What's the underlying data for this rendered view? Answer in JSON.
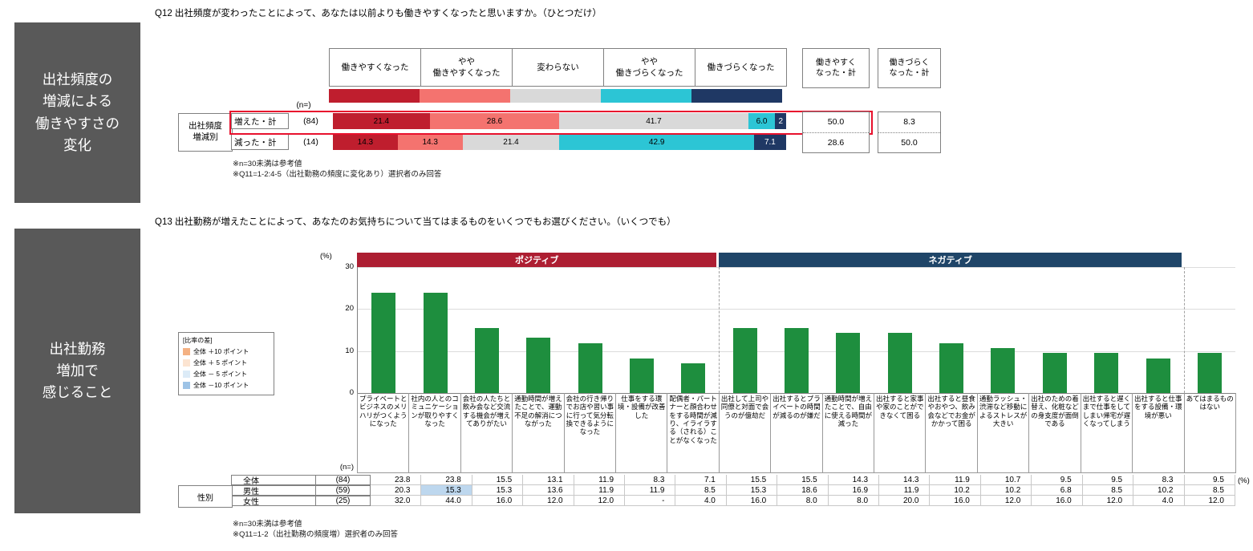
{
  "q12": {
    "side_label": "出社頻度の\n増減による\n働きやすさの\n変化",
    "title": "Q12 出社頻度が変わったことによって、あなたは以前よりも働きやすくなったと思いますか。（ひとつだけ）",
    "n_header": "(n=)",
    "group_label": "出社頻度\n増減別",
    "columns": [
      "働きやすくなった",
      "やや\n働きやすくなった",
      "変わらない",
      "やや\n働きづらくなった",
      "働きづらくなった"
    ],
    "rows": [
      {
        "label": "増えた・計",
        "n": "(84)",
        "display_labels": [
          "21.4",
          "28.6",
          "41.7",
          "6.0",
          "2"
        ],
        "easier_total": "50.0",
        "harder_total": "8.3",
        "highlighted": true
      },
      {
        "label": "減った・計",
        "n": "(14)",
        "display_labels": [
          "14.3",
          "14.3",
          "21.4",
          "42.9",
          "7.1"
        ],
        "easier_total": "28.6",
        "harder_total": "50.0",
        "highlighted": false
      }
    ],
    "easier_total_header": "働きやすく\nなった・計",
    "harder_total_header": "働きづらく\nなった・計",
    "highlight_color": "#e8112d",
    "notes": [
      "※n=30未満は参考値",
      "※Q11=1-2:4-5（出社勤務の頻度に変化あり）選択者のみ回答"
    ]
  },
  "q13": {
    "side_label": "出社勤務\n増加で\n感じること",
    "title": "Q13 出社勤務が増えたことによって、あなたのお気持ちについて当てはまるものをいくつでもお選びください。（いくつでも）",
    "legend": {
      "title": "[比率の差]",
      "items": [
        {
          "color": "#f4b183",
          "label": "全体 ＋10 ポイント"
        },
        {
          "color": "#fce4d1",
          "label": "全体 ＋ 5 ポイント"
        },
        {
          "color": "#dcebf7",
          "label": "全体 － 5 ポイント"
        },
        {
          "color": "#9dc3e6",
          "label": "全体 －10 ポイント"
        }
      ]
    },
    "bands": [
      {
        "label": "ポジティブ",
        "color": "#ad1e32",
        "span": 7
      },
      {
        "label": "ネガティブ",
        "color": "#1f4568",
        "span": 9
      }
    ],
    "axis": {
      "unit": "(%)",
      "max": 30,
      "ticks": [
        30,
        20,
        10,
        0
      ],
      "grid_values": [
        10,
        20,
        30
      ]
    },
    "bar_color": "#1e8e3e",
    "n_header": "(n=)",
    "pct_label": "(%)",
    "table": {
      "group_label": "性別",
      "rows": [
        {
          "label": "全体",
          "n": "(84)"
        },
        {
          "label": "男性",
          "n": "(59)",
          "highlight_cells": {
            "1": "#bdd7ee"
          }
        },
        {
          "label": "女性",
          "n": "(25)"
        }
      ]
    },
    "notes": [
      "※n=30未満は参考値",
      "※Q11=1-2（出社勤務の頻度増）選択者のみ回答"
    ]
  },
  "chart_data": [
    {
      "type": "bar",
      "subtype": "horizontal-stacked",
      "title": "Q12 出社頻度が変わったことによって、あなたは以前よりも働きやすくなったと思いますか。（ひとつだけ）",
      "categories": [
        "増えた・計（n=84）",
        "減った・計（n=14）"
      ],
      "series": [
        {
          "name": "働きやすくなった",
          "color": "#bf1e2e",
          "values": [
            21.4,
            14.3
          ]
        },
        {
          "name": "やや働きやすくなった",
          "color": "#f4736f",
          "values": [
            28.6,
            14.3
          ]
        },
        {
          "name": "変わらない",
          "color": "#d9d9d9",
          "values": [
            41.7,
            21.4
          ]
        },
        {
          "name": "やや働きづらくなった",
          "color": "#2cc5d5",
          "values": [
            6.0,
            42.9
          ]
        },
        {
          "name": "働きづらくなった",
          "color": "#1f3864",
          "values": [
            2.4,
            7.1
          ]
        }
      ],
      "totals": {
        "働きやすくなった・計": [
          50.0,
          28.6
        ],
        "働きづらくなった・計": [
          8.3,
          50.0
        ]
      },
      "xlim": [
        0,
        100
      ],
      "unit": "%"
    },
    {
      "type": "bar",
      "title": "Q13 出社勤務が増えたことによって、あなたのお気持ちについて当てはまるものをいくつでもお選びください。（いくつでも）",
      "categories": [
        "プライベートとビジネスのメリハリがつくようになった",
        "社内の人とのコミュニケーションが取りやすくなった",
        "会社の人たちと飲み会など交流する機会が増えてありがたい",
        "通勤時間が増えたことで、運動不足の解消につながった",
        "会社の行き帰りでお店や習い事に行って気分転換できるようになった",
        "仕事をする環境・設備が改善した",
        "配偶者・パートナーと顔合わせをする時間が減り、イライラする（される）ことがなくなった",
        "出社して上司や同僚と対面で会うのが億劫だ",
        "出社するとプライベートの時間が減るのが嫌だ",
        "通勤時間が増えたことで、自由に使える時間が減った",
        "出社すると家事や家のことができなくて困る",
        "出社すると昼食やおやつ、飲み会などでお金がかかって困る",
        "通勤ラッシュ・渋滞など移動によるストレスが大きい",
        "出社のための着替え、化粧などの身支度が面倒である",
        "出社すると遅くまで仕事をしてしまい帰宅が遅くなってしまう",
        "出社すると仕事をする設備・環境が悪い",
        "あてはまるものはない"
      ],
      "series": [
        {
          "name": "全体（n=84）",
          "values": [
            23.8,
            23.8,
            15.5,
            13.1,
            11.9,
            8.3,
            7.1,
            15.5,
            15.5,
            14.3,
            14.3,
            11.9,
            10.7,
            9.5,
            9.5,
            8.3,
            9.5
          ]
        },
        {
          "name": "男性（n=59）",
          "values": [
            20.3,
            15.3,
            15.3,
            13.6,
            11.9,
            11.9,
            8.5,
            15.3,
            18.6,
            16.9,
            11.9,
            10.2,
            10.2,
            6.8,
            8.5,
            10.2,
            8.5
          ]
        },
        {
          "name": "女性（n=25）",
          "values": [
            32.0,
            44.0,
            16.0,
            12.0,
            12.0,
            null,
            4.0,
            16.0,
            8.0,
            8.0,
            20.0,
            16.0,
            12.0,
            16.0,
            12.0,
            4.0,
            12.0
          ]
        }
      ],
      "plotted_series": "全体（n=84）",
      "ylabel": "(%)",
      "ylim": [
        0,
        30
      ],
      "grid": true,
      "legend_position": "none",
      "groups": [
        {
          "label": "ポジティブ",
          "columns": [
            1,
            7
          ]
        },
        {
          "label": "ネガティブ",
          "columns": [
            8,
            16
          ]
        }
      ]
    }
  ]
}
